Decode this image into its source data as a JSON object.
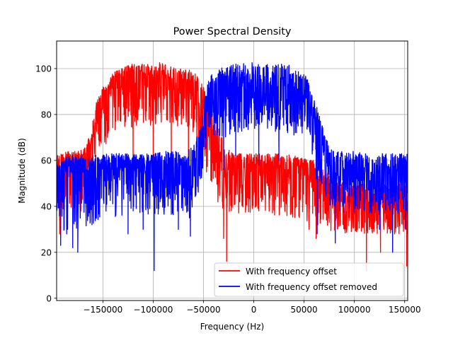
{
  "chart_data": {
    "type": "line",
    "title": "Power Spectral Density",
    "xlabel": "Frequency (Hz)",
    "ylabel": "Magnitude (dB)",
    "xlim": [
      -196000,
      153000
    ],
    "ylim": [
      -1,
      112
    ],
    "x_ticks": [
      -150000,
      -100000,
      -50000,
      0,
      50000,
      100000,
      150000
    ],
    "x_tick_labels": [
      "−150000",
      "−100000",
      "−50000",
      "0",
      "50000",
      "100000",
      "150000"
    ],
    "y_ticks": [
      0,
      20,
      40,
      60,
      80,
      100
    ],
    "y_tick_labels": [
      "0",
      "20",
      "40",
      "60",
      "80",
      "100"
    ],
    "grid": true,
    "legend_position": "lower-right",
    "series": [
      {
        "name": "With frequency offset",
        "color": "#ff0000",
        "x": [
          -196000,
          -185000,
          -175000,
          -168000,
          -162000,
          -157000,
          -150000,
          -140000,
          -130000,
          -120000,
          -110000,
          -100000,
          -90000,
          -80000,
          -70000,
          -60000,
          -50000,
          -45000,
          -40000,
          -35000,
          -30000,
          -25000,
          -20000,
          -10000,
          0,
          10000,
          20000,
          30000,
          40000,
          50000,
          60000,
          70000,
          80000,
          90000,
          100000,
          110000,
          120000,
          130000,
          140000,
          150000,
          153000
        ],
        "upper": [
          62,
          64,
          64,
          66,
          72,
          85,
          92,
          98,
          101,
          102,
          102,
          102,
          103,
          101,
          100,
          99,
          93,
          86,
          80,
          74,
          68,
          65,
          63,
          63,
          63,
          63,
          63,
          63,
          62,
          61,
          60,
          56,
          52,
          50,
          50,
          50,
          50,
          50,
          50,
          50,
          48
        ],
        "mean": [
          58,
          59,
          60,
          61,
          65,
          78,
          86,
          91,
          93,
          94,
          94,
          94,
          94,
          93,
          92,
          90,
          84,
          75,
          67,
          61,
          58,
          57,
          57,
          57,
          57,
          57,
          56,
          56,
          55,
          54,
          53,
          49,
          44,
          42,
          42,
          42,
          42,
          42,
          42,
          42,
          41
        ],
        "lower": [
          30,
          38,
          40,
          42,
          50,
          60,
          66,
          70,
          74,
          74,
          75,
          75,
          76,
          75,
          73,
          71,
          64,
          55,
          47,
          40,
          38,
          37,
          37,
          37,
          37,
          37,
          36,
          36,
          35,
          34,
          33,
          30,
          28,
          28,
          28,
          28,
          28,
          28,
          28,
          28,
          26
        ],
        "dips": [
          [
            -193000,
            28
          ],
          [
            -172000,
            38
          ],
          [
            -160000,
            46
          ],
          [
            -120000,
            55
          ],
          [
            -100000,
            61
          ],
          [
            -82000,
            60
          ],
          [
            -65000,
            58
          ],
          [
            -47000,
            55
          ],
          [
            -30000,
            26
          ],
          [
            -27000,
            16
          ],
          [
            5000,
            38
          ],
          [
            -14000,
            42
          ],
          [
            33000,
            36
          ],
          [
            55000,
            30
          ],
          [
            62000,
            26
          ],
          [
            75000,
            33
          ],
          [
            112000,
            12
          ],
          [
            126000,
            20
          ],
          [
            140000,
            28
          ],
          [
            152000,
            14
          ]
        ]
      },
      {
        "name": "With frequency offset removed",
        "color": "#0000ff",
        "x": [
          -196000,
          -185000,
          -175000,
          -160000,
          -150000,
          -140000,
          -130000,
          -120000,
          -110000,
          -100000,
          -90000,
          -80000,
          -70000,
          -60000,
          -55000,
          -50000,
          -45000,
          -40000,
          -35000,
          -30000,
          -20000,
          -10000,
          0,
          10000,
          20000,
          30000,
          40000,
          50000,
          55000,
          60000,
          65000,
          70000,
          75000,
          80000,
          90000,
          100000,
          110000,
          120000,
          130000,
          140000,
          150000,
          153000
        ],
        "upper": [
          58,
          62,
          62,
          62,
          63,
          63,
          63,
          63,
          63,
          63,
          64,
          64,
          64,
          66,
          72,
          85,
          95,
          99,
          100,
          101,
          102,
          103,
          103,
          102,
          102,
          102,
          101,
          98,
          94,
          88,
          80,
          72,
          66,
          64,
          64,
          64,
          63,
          63,
          63,
          63,
          63,
          63
        ],
        "mean": [
          52,
          54,
          55,
          56,
          57,
          57,
          57,
          57,
          57,
          57,
          57,
          57,
          57,
          58,
          64,
          75,
          84,
          88,
          89,
          90,
          90,
          90,
          90,
          90,
          90,
          90,
          89,
          87,
          84,
          79,
          71,
          62,
          58,
          56,
          55,
          55,
          55,
          55,
          55,
          55,
          55,
          55
        ],
        "lower": [
          36,
          26,
          30,
          32,
          34,
          35,
          35,
          36,
          36,
          36,
          36,
          36,
          37,
          38,
          44,
          56,
          64,
          68,
          70,
          70,
          71,
          72,
          72,
          72,
          72,
          72,
          71,
          69,
          66,
          60,
          52,
          44,
          40,
          38,
          37,
          37,
          37,
          37,
          37,
          37,
          36,
          34
        ],
        "dips": [
          [
            -192000,
            23
          ],
          [
            -186000,
            28
          ],
          [
            -180000,
            22
          ],
          [
            -175000,
            20
          ],
          [
            -125000,
            28
          ],
          [
            -110000,
            30
          ],
          [
            -99000,
            12
          ],
          [
            -75000,
            30
          ],
          [
            -64000,
            35
          ],
          [
            -63000,
            27
          ],
          [
            -30000,
            56
          ],
          [
            -18000,
            62
          ],
          [
            5000,
            58
          ],
          [
            25000,
            60
          ],
          [
            62000,
            52
          ],
          [
            63000,
            28
          ],
          [
            81000,
            24
          ],
          [
            125000,
            30
          ],
          [
            138000,
            20
          ],
          [
            151000,
            30
          ]
        ]
      }
    ]
  }
}
